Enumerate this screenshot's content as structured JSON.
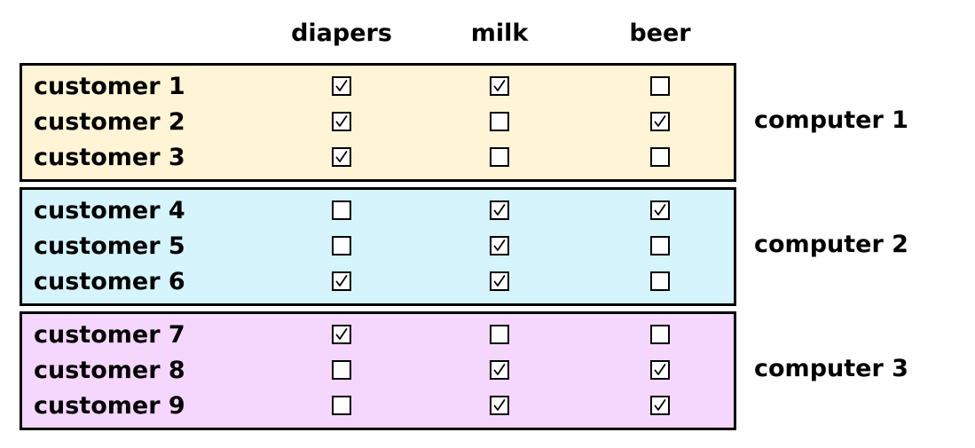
{
  "columns": [
    "diapers",
    "milk",
    "beer"
  ],
  "groups": [
    {
      "label": "computer 1",
      "color": "#fff5d6",
      "rows": [
        {
          "customer": "customer 1",
          "checks": [
            true,
            true,
            false
          ]
        },
        {
          "customer": "customer 2",
          "checks": [
            true,
            false,
            true
          ]
        },
        {
          "customer": "customer 3",
          "checks": [
            true,
            false,
            false
          ]
        }
      ]
    },
    {
      "label": "computer 2",
      "color": "#d5f4fc",
      "rows": [
        {
          "customer": "customer 4",
          "checks": [
            false,
            true,
            true
          ]
        },
        {
          "customer": "customer 5",
          "checks": [
            false,
            true,
            false
          ]
        },
        {
          "customer": "customer 6",
          "checks": [
            true,
            true,
            false
          ]
        }
      ]
    },
    {
      "label": "computer 3",
      "color": "#f5d6fd",
      "rows": [
        {
          "customer": "customer 7",
          "checks": [
            true,
            false,
            false
          ]
        },
        {
          "customer": "customer 8",
          "checks": [
            false,
            true,
            true
          ]
        },
        {
          "customer": "customer 9",
          "checks": [
            false,
            true,
            true
          ]
        }
      ]
    }
  ]
}
